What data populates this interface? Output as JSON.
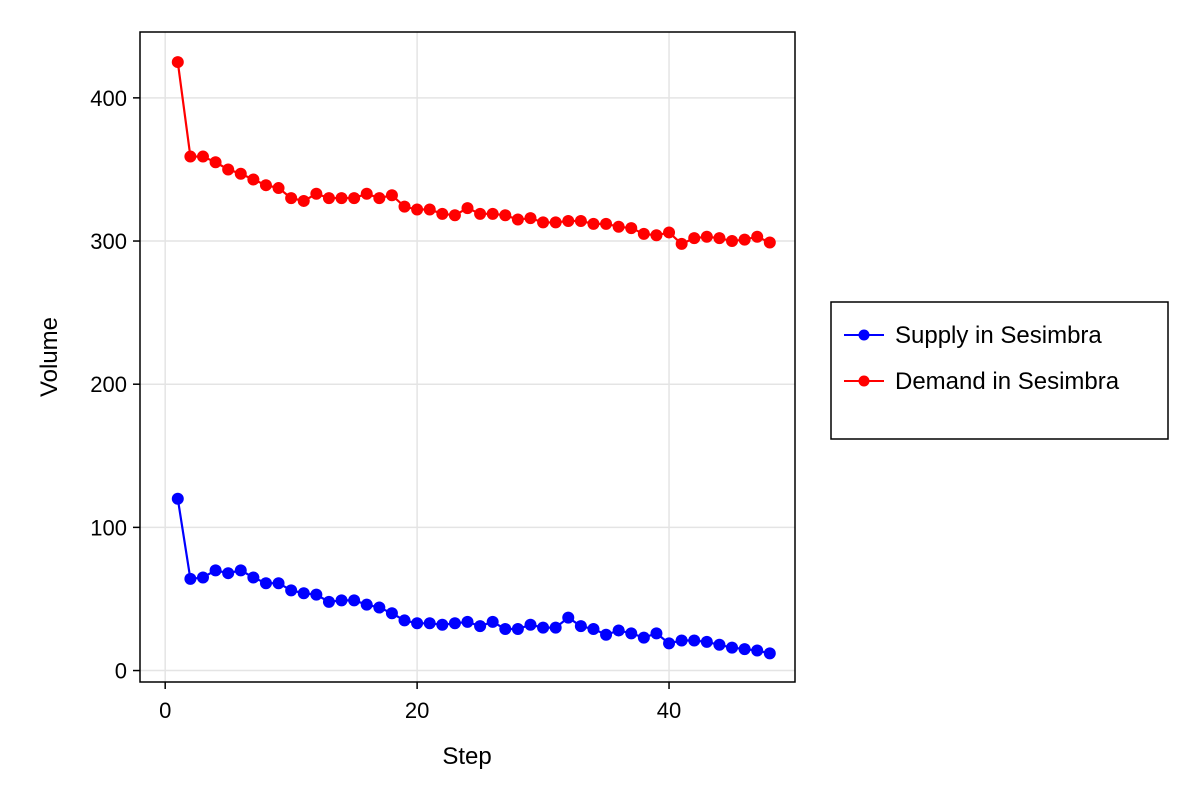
{
  "chart_data": {
    "type": "line",
    "title": "",
    "xlabel": "Step",
    "ylabel": "Volume",
    "xlim": [
      -2,
      50
    ],
    "ylim": [
      -8,
      446
    ],
    "xticks": [
      0,
      20,
      40
    ],
    "yticks": [
      0,
      100,
      200,
      300,
      400
    ],
    "grid": true,
    "legend_position": "right",
    "x": [
      1,
      2,
      3,
      4,
      5,
      6,
      7,
      8,
      9,
      10,
      11,
      12,
      13,
      14,
      15,
      16,
      17,
      18,
      19,
      20,
      21,
      22,
      23,
      24,
      25,
      26,
      27,
      28,
      29,
      30,
      31,
      32,
      33,
      34,
      35,
      36,
      37,
      38,
      39,
      40,
      41,
      42,
      43,
      44,
      45,
      46,
      47,
      48
    ],
    "series": [
      {
        "name": "Supply in Sesimbra",
        "color": "#0000ff",
        "marker": "circle",
        "values": [
          120,
          64,
          65,
          70,
          68,
          70,
          65,
          61,
          61,
          56,
          54,
          53,
          48,
          49,
          49,
          46,
          44,
          40,
          35,
          33,
          33,
          32,
          33,
          34,
          31,
          34,
          29,
          29,
          32,
          30,
          30,
          37,
          31,
          29,
          25,
          28,
          26,
          23,
          26,
          19,
          21,
          21,
          20,
          18,
          16,
          15,
          14,
          12
        ]
      },
      {
        "name": "Demand in Sesimbra",
        "color": "#ff0000",
        "marker": "circle",
        "values": [
          425,
          359,
          359,
          355,
          350,
          347,
          343,
          339,
          337,
          330,
          328,
          333,
          330,
          330,
          330,
          333,
          330,
          332,
          324,
          322,
          322,
          319,
          318,
          323,
          319,
          319,
          318,
          315,
          316,
          313,
          313,
          314,
          314,
          312,
          312,
          310,
          309,
          305,
          304,
          306,
          298,
          302,
          303,
          302,
          300,
          301,
          303,
          299
        ]
      }
    ]
  }
}
